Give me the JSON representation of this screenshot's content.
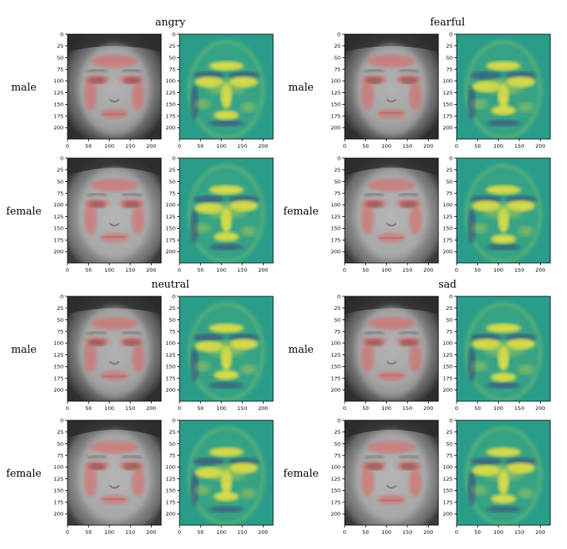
{
  "chart_data": {
    "type": "heatmap",
    "groups": [
      {
        "title": "angry",
        "rows": [
          "male",
          "female"
        ]
      },
      {
        "title": "fearful",
        "rows": [
          "male",
          "female"
        ]
      },
      {
        "title": "neutral",
        "rows": [
          "male",
          "female"
        ]
      },
      {
        "title": "sad",
        "rows": [
          "male",
          "female"
        ]
      }
    ],
    "panels_per_row": [
      "face overlay",
      "attribution heatmap"
    ],
    "xlim": [
      0,
      224
    ],
    "ylim": [
      224,
      0
    ],
    "x_ticks": [
      "0",
      "50",
      "100",
      "150",
      "200"
    ],
    "y_ticks": [
      "0",
      "25",
      "50",
      "75",
      "100",
      "125",
      "150",
      "175",
      "200"
    ],
    "grid": false,
    "colors": {
      "heatmap_background": "#2a9d8a",
      "heatmap_high": "#f0e442",
      "heatmap_low": "#3b3b7a",
      "face_overlay": "#e06060"
    }
  }
}
